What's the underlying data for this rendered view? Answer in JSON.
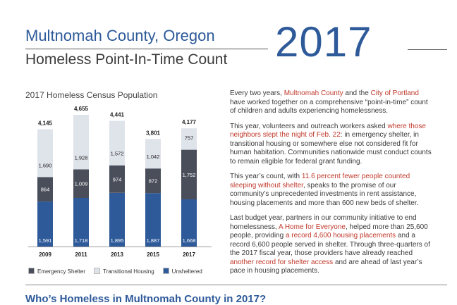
{
  "header": {
    "title_line1": "Multnomah County, Oregon",
    "title_line2": "Homeless Point-In-Time Count",
    "year": "2017"
  },
  "chart_data": {
    "type": "bar",
    "stacked": true,
    "title": "2017 Homeless Census Population",
    "categories": [
      "2009",
      "2011",
      "2013",
      "2015",
      "2017"
    ],
    "totals": [
      4145,
      4655,
      4441,
      3801,
      4177
    ],
    "totals_labels": [
      "4,145",
      "4,655",
      "4,441",
      "3,801",
      "4,177"
    ],
    "series": [
      {
        "name": "Unsheltered",
        "color": "#2e5a9a",
        "values": [
          1591,
          1718,
          1895,
          1887,
          1668
        ],
        "labels": [
          "1,591",
          "1,718",
          "1,895",
          "1,887",
          "1,668"
        ]
      },
      {
        "name": "Emergency Shelter",
        "color": "#4a4e5a",
        "values": [
          864,
          1009,
          974,
          872,
          1752
        ],
        "labels": [
          "864",
          "1,009",
          "974",
          "872",
          "1,752"
        ]
      },
      {
        "name": "Transitional Housing",
        "color": "#dfe3ea",
        "values": [
          1690,
          1928,
          1572,
          1042,
          757
        ],
        "labels": [
          "1,690",
          "1,928",
          "1,572",
          "1,042",
          "757"
        ]
      }
    ],
    "legend_order": [
      "Emergency Shelter",
      "Transitional Housing",
      "Unsheltered"
    ],
    "ylim": [
      0,
      4655
    ],
    "grid": false,
    "legend_position": "bottom"
  },
  "body": {
    "p1_a": "Every two years, ",
    "p1_b": "Multnomah County",
    "p1_c": " and the ",
    "p1_d": "City of Portland",
    "p1_e": " have worked together on a comprehensive “point-in-time” count of children and adults experiencing homelessness.",
    "p2_a": "This year, volunteers and outreach workers asked ",
    "p2_b": "where those neighbors slept the night of Feb. 22",
    "p2_c": ": in emergency shelter, in transitional housing or somewhere else not considered fit for human habitation. Communities nationwide must conduct counts to remain eligible for federal grant funding.",
    "p3_a": "This year’s count, with ",
    "p3_b": "11.6 percent fewer people counted sleeping without shelter",
    "p3_c": ", speaks to the promise of our community’s unprecedented investments in rent assistance, housing placements and more than 600 new beds of shelter.",
    "p4_a": "Last budget year, partners in our community initiative to end homelessness, ",
    "p4_b": "A Home for Everyone",
    "p4_c": ", helped more than 25,600 people, providing ",
    "p4_d": "a record 4,600 housing placements",
    "p4_e": " and a record 6,600 people served in shelter. Through three-quarters of the 2017 fiscal year, those providers have already reached ",
    "p4_f": "another record for shelter access",
    "p4_g": " and are ahead of last year’s pace in housing placements."
  },
  "section": {
    "title": "Who’s Homeless in Multnomah County in 2017?"
  }
}
